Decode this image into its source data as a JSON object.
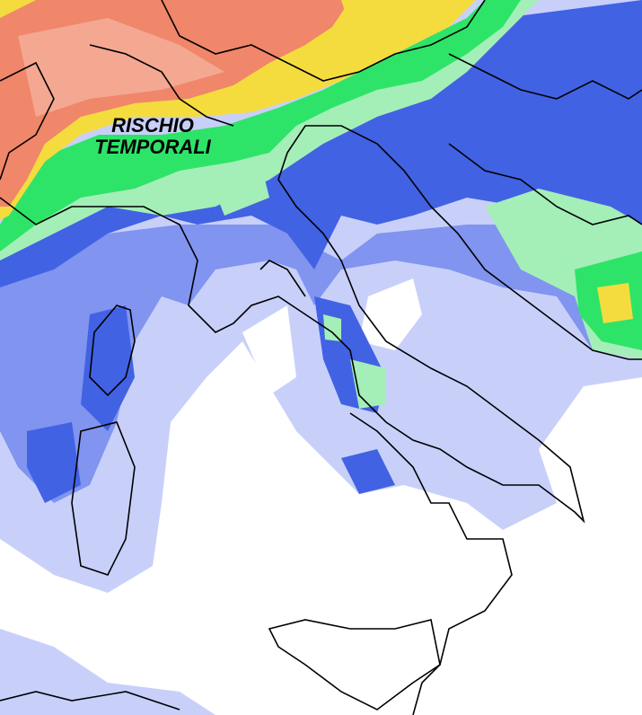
{
  "map": {
    "annotation": "RISCHIO\nTEMPORALI",
    "annotation_line1": "RISCHIO",
    "annotation_line2": "TEMPORALI",
    "colors": {
      "salmon": "#f0866a",
      "salmon_light": "#f4a891",
      "yellow": "#f4dc3e",
      "green": "#2ee468",
      "green_light": "#a4eeb8",
      "blue": "#4262e4",
      "blue_mid": "#8094f0",
      "blue_light": "#c8d0fa",
      "background": "#ffffff",
      "borders": "#000000"
    }
  }
}
